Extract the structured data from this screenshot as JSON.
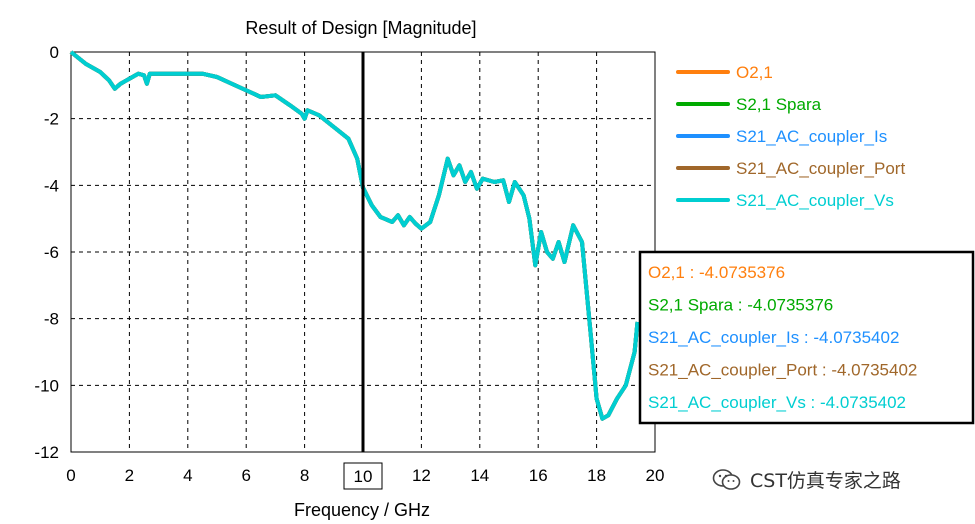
{
  "chart_data": {
    "type": "line",
    "title": "Result of Design [Magnitude]",
    "xlabel": "Frequency / GHz",
    "ylabel": "",
    "xlim": [
      0,
      20
    ],
    "ylim": [
      -12,
      0
    ],
    "xticks": [
      "0",
      "2",
      "4",
      "6",
      "8",
      "10",
      "12",
      "14",
      "16",
      "18",
      "20"
    ],
    "yticks": [
      "0",
      "-2",
      "-4",
      "-6",
      "-8",
      "-10",
      "-12"
    ],
    "grid": true,
    "legend_position": "right",
    "marker_x": 10,
    "marker_label": "10",
    "series": [
      {
        "name": "O2,1",
        "color": "#ff7f0e"
      },
      {
        "name": "S2,1 Spara",
        "color": "#00aa00"
      },
      {
        "name": "S21_AC_coupler_Is",
        "color": "#1e90ff"
      },
      {
        "name": "S21_AC_coupler_Port",
        "color": "#a0672a"
      },
      {
        "name": "S21_AC_coupler_Vs",
        "color": "#00ced1"
      }
    ],
    "curve": {
      "x": [
        0,
        0.5,
        1.0,
        1.3,
        1.5,
        1.7,
        2.0,
        2.3,
        2.5,
        2.6,
        2.7,
        3.0,
        3.5,
        4.0,
        4.5,
        5.0,
        5.5,
        6.0,
        6.5,
        7.0,
        7.5,
        7.9,
        8.0,
        8.1,
        8.5,
        9.0,
        9.5,
        9.8,
        10.0,
        10.3,
        10.6,
        11.0,
        11.2,
        11.4,
        11.6,
        11.8,
        12.0,
        12.3,
        12.6,
        12.9,
        13.1,
        13.3,
        13.5,
        13.7,
        13.9,
        14.1,
        14.5,
        14.8,
        15.0,
        15.2,
        15.5,
        15.7,
        15.9,
        16.1,
        16.3,
        16.5,
        16.7,
        16.9,
        17.2,
        17.5,
        17.8,
        18.0,
        18.2,
        18.4,
        18.7,
        19.0,
        19.3,
        19.4
      ],
      "y": [
        0,
        -0.35,
        -0.6,
        -0.85,
        -1.1,
        -0.95,
        -0.8,
        -0.65,
        -0.7,
        -0.95,
        -0.65,
        -0.65,
        -0.65,
        -0.65,
        -0.65,
        -0.75,
        -0.95,
        -1.15,
        -1.35,
        -1.3,
        -1.6,
        -1.85,
        -2.0,
        -1.75,
        -1.9,
        -2.25,
        -2.6,
        -3.2,
        -4.07,
        -4.6,
        -4.95,
        -5.1,
        -4.9,
        -5.2,
        -4.95,
        -5.15,
        -5.3,
        -5.1,
        -4.3,
        -3.2,
        -3.7,
        -3.4,
        -3.9,
        -3.6,
        -4.1,
        -3.8,
        -3.9,
        -3.85,
        -4.5,
        -3.9,
        -4.3,
        -5.0,
        -6.4,
        -5.4,
        -6.0,
        -6.2,
        -5.7,
        -6.3,
        -5.2,
        -5.7,
        -8.5,
        -10.4,
        -11.0,
        -10.9,
        -10.4,
        -10.0,
        -9.0,
        -8.1
      ]
    }
  },
  "readout": [
    {
      "text": "O2,1 : -4.0735376",
      "color": "#ff7f0e"
    },
    {
      "text": "S2,1 Spara : -4.0735376",
      "color": "#00aa00"
    },
    {
      "text": "S21_AC_coupler_Is : -4.0735402",
      "color": "#1e90ff"
    },
    {
      "text": "S21_AC_coupler_Port : -4.0735402",
      "color": "#a0672a"
    },
    {
      "text": "S21_AC_coupler_Vs : -4.0735402",
      "color": "#00ced1"
    }
  ],
  "watermark": {
    "text": "CST仿真专家之路",
    "icon": "wechat-icon"
  }
}
